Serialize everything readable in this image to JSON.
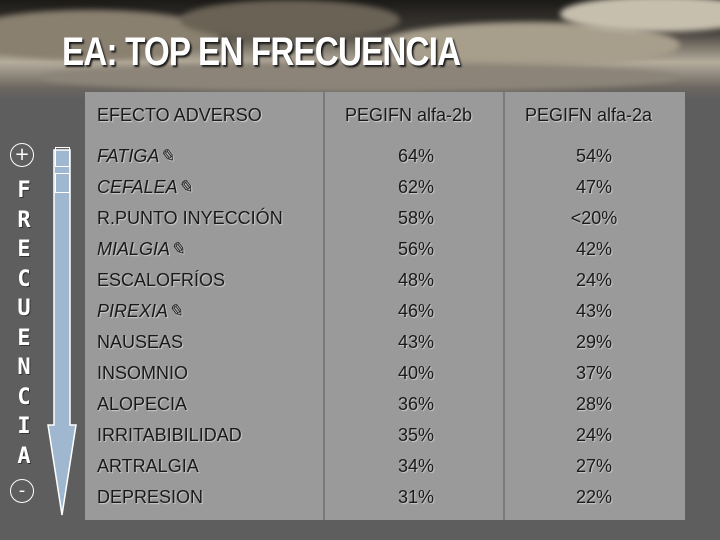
{
  "slide": {
    "title": "EA: TOP EN FRECUENCIA",
    "side_label": [
      "F",
      "R",
      "E",
      "C",
      "U",
      "E",
      "N",
      "C",
      "I",
      "A"
    ],
    "plus": "+",
    "minus": "-"
  },
  "table": {
    "headers": [
      "EFECTO ADVERSO",
      "PEGIFN alfa-2b",
      "PEGIFN alfa-2a"
    ],
    "rows": [
      {
        "effect": "FATIGA",
        "marker": "✎",
        "a": "64%",
        "b": "54%"
      },
      {
        "effect": "CEFALEA",
        "marker": "✎",
        "a": "62%",
        "b": "47%"
      },
      {
        "effect": "R.PUNTO INYECCIÓN",
        "marker": "",
        "a": "58%",
        "b": "<20%"
      },
      {
        "effect": "MIALGIA",
        "marker": "✎",
        "a": "56%",
        "b": "42%"
      },
      {
        "effect": "ESCALOFRÍOS",
        "marker": "",
        "a": "48%",
        "b": "24%"
      },
      {
        "effect": "PIREXIA",
        "marker": "✎",
        "a": "46%",
        "b": "43%"
      },
      {
        "effect": "NAUSEAS",
        "marker": "",
        "a": "43%",
        "b": "29%"
      },
      {
        "effect": "INSOMNIO",
        "marker": "",
        "a": "40%",
        "b": "37%"
      },
      {
        "effect": "ALOPECIA",
        "marker": "",
        "a": "36%",
        "b": "28%"
      },
      {
        "effect": "IRRITABIBILIDAD",
        "marker": "",
        "a": "35%",
        "b": "24%"
      },
      {
        "effect": "ARTRALGIA",
        "marker": "",
        "a": "34%",
        "b": "27%"
      },
      {
        "effect": "DEPRESION",
        "marker": "",
        "a": "31%",
        "b": "22%"
      }
    ]
  },
  "colors": {
    "background": "#5e5e5e",
    "panel": "#9a9a9a",
    "title": "#ffffff",
    "arrow_fill": "#9fb8cf",
    "text": "#1a1a1a"
  }
}
